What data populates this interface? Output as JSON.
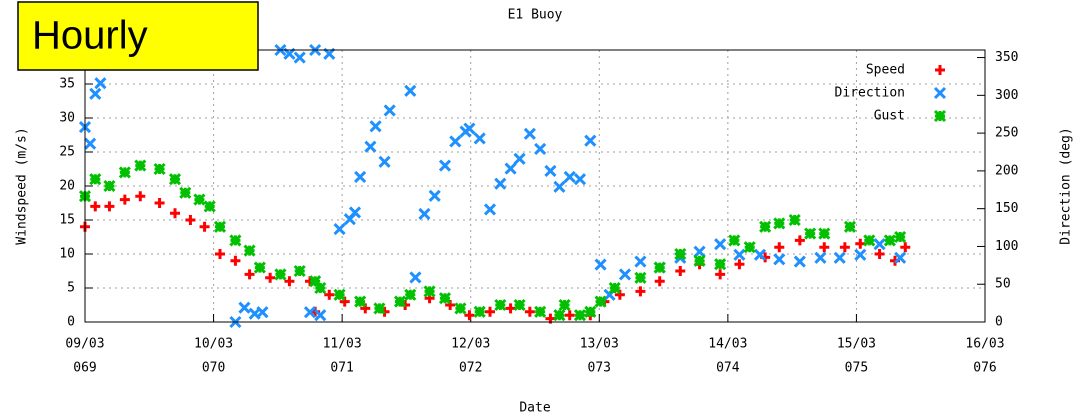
{
  "chart_data": {
    "type": "scatter",
    "title": "E1 Buoy",
    "annotation": "Hourly",
    "xlabel": "Date",
    "ylabel": "Windspeed (m/s)",
    "y2label": "Direction (deg)",
    "xlim": [
      69,
      76
    ],
    "ylim": [
      0,
      40
    ],
    "y2lim": [
      0,
      360
    ],
    "xticks": [
      {
        "value": 69,
        "label": "09/03",
        "day": "069"
      },
      {
        "value": 70,
        "label": "10/03",
        "day": "070"
      },
      {
        "value": 71,
        "label": "11/03",
        "day": "071"
      },
      {
        "value": 72,
        "label": "12/03",
        "day": "072"
      },
      {
        "value": 73,
        "label": "13/03",
        "day": "073"
      },
      {
        "value": 74,
        "label": "14/03",
        "day": "074"
      },
      {
        "value": 75,
        "label": "15/03",
        "day": "075"
      },
      {
        "value": 76,
        "label": "16/03",
        "day": "076"
      }
    ],
    "yticks": [
      0,
      5,
      10,
      15,
      20,
      25,
      30,
      35
    ],
    "y2ticks": [
      0,
      50,
      100,
      150,
      200,
      250,
      300,
      350
    ],
    "grid": true,
    "legend": "upper right",
    "series": [
      {
        "name": "Speed",
        "color": "#ff0000",
        "marker": "plus",
        "x": [
          69.0,
          69.08,
          69.19,
          69.31,
          69.43,
          69.58,
          69.7,
          69.82,
          69.93,
          70.05,
          70.17,
          70.28,
          70.44,
          70.59,
          70.75,
          70.79,
          70.9,
          71.02,
          71.18,
          71.33,
          71.49,
          71.68,
          71.84,
          71.99,
          72.15,
          72.31,
          72.46,
          72.62,
          72.77,
          72.93,
          73.04,
          73.16,
          73.32,
          73.47,
          73.63,
          73.78,
          73.94,
          74.09,
          74.29,
          74.4,
          74.56,
          74.75,
          74.91,
          75.03,
          75.18,
          75.3,
          75.38
        ],
        "values": [
          14,
          17,
          17,
          18,
          18.5,
          17.5,
          16,
          15,
          14,
          10,
          9,
          7,
          6.5,
          6,
          6,
          1.5,
          4,
          3,
          2,
          1.5,
          2.5,
          3.5,
          2.5,
          1,
          1.5,
          2,
          1.5,
          0.5,
          1,
          1,
          3,
          4,
          4.5,
          6,
          7.5,
          8.5,
          7,
          8.5,
          9.5,
          11,
          12,
          11,
          11,
          11.5,
          10,
          9,
          11
        ]
      },
      {
        "name": "Direction",
        "color": "#1e90ff",
        "marker": "cross",
        "axis": "y2",
        "x": [
          69.0,
          69.04,
          69.08,
          69.12,
          70.17,
          70.24,
          70.32,
          70.38,
          70.52,
          70.59,
          70.67,
          70.75,
          70.79,
          70.83,
          70.9,
          70.98,
          71.06,
          71.1,
          71.14,
          71.22,
          71.26,
          71.33,
          71.37,
          71.53,
          71.57,
          71.64,
          71.72,
          71.8,
          71.88,
          71.96,
          71.99,
          72.07,
          72.15,
          72.23,
          72.31,
          72.38,
          72.46,
          72.54,
          72.62,
          72.69,
          72.77,
          72.85,
          72.93,
          73.01,
          73.08,
          73.2,
          73.32,
          73.47,
          73.63,
          73.78,
          73.94,
          74.09,
          74.25,
          74.4,
          74.56,
          74.72,
          74.87,
          75.03,
          75.18,
          75.34
        ],
        "values": [
          258,
          236,
          302,
          316,
          0,
          19,
          11,
          13,
          360,
          355,
          350,
          13,
          360,
          9,
          355,
          123,
          136,
          145,
          192,
          232,
          259,
          212,
          280,
          306,
          59,
          143,
          167,
          207,
          239,
          252,
          256,
          243,
          149,
          183,
          203,
          216,
          249,
          229,
          200,
          179,
          192,
          189,
          240,
          76,
          36,
          63,
          80,
          72,
          85,
          93,
          103,
          89,
          89,
          83,
          80,
          85,
          85,
          89,
          103,
          85
        ]
      },
      {
        "name": "Gust",
        "color": "#00c000",
        "marker": "star",
        "x": [
          69.0,
          69.08,
          69.19,
          69.31,
          69.43,
          69.58,
          69.7,
          69.78,
          69.89,
          69.97,
          70.05,
          70.17,
          70.28,
          70.36,
          70.52,
          70.67,
          70.79,
          70.83,
          70.98,
          71.14,
          71.29,
          71.45,
          71.53,
          71.68,
          71.8,
          71.92,
          72.07,
          72.23,
          72.38,
          72.54,
          72.69,
          72.73,
          72.85,
          72.93,
          73.01,
          73.12,
          73.32,
          73.47,
          73.63,
          73.78,
          73.94,
          74.05,
          74.17,
          74.29,
          74.4,
          74.52,
          74.64,
          74.75,
          74.95,
          75.1,
          75.26,
          75.34
        ],
        "values": [
          18.5,
          21,
          20,
          22,
          23,
          22.5,
          21,
          19,
          18,
          17,
          14,
          12,
          10.5,
          8,
          7,
          7.5,
          6,
          5,
          4,
          3,
          2,
          3,
          4,
          4.5,
          3.5,
          2,
          1.5,
          2.5,
          2.5,
          1.5,
          1,
          2.5,
          1,
          1.5,
          3,
          5,
          6.5,
          8,
          10,
          9,
          8.5,
          12,
          11,
          14,
          14.5,
          15,
          13,
          13,
          14,
          12,
          12,
          12.5
        ]
      }
    ]
  }
}
